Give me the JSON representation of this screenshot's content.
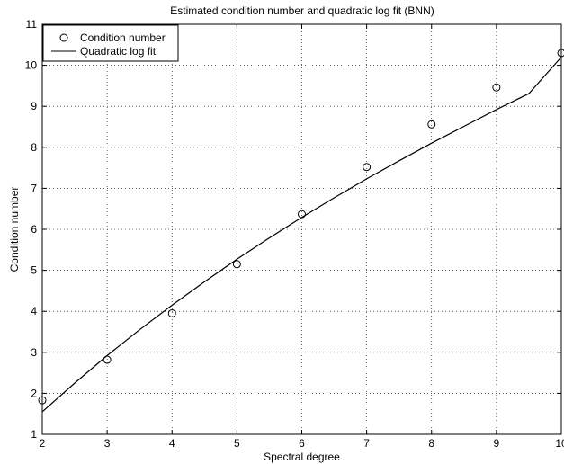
{
  "chart_data": {
    "type": "scatter",
    "title": "Estimated condition number and quadratic log fit (BNN)",
    "xlabel": "Spectral degree",
    "ylabel": "Condition number",
    "xlim": [
      2,
      10
    ],
    "ylim": [
      1,
      11
    ],
    "xticks": [
      2,
      3,
      4,
      5,
      6,
      7,
      8,
      9,
      10
    ],
    "yticks": [
      1,
      2,
      3,
      4,
      5,
      6,
      7,
      8,
      9,
      10,
      11
    ],
    "grid": true,
    "grid_style": "dotted",
    "legend_position": "top-left",
    "series": [
      {
        "name": "Condition number",
        "kind": "markers",
        "marker": "circle",
        "color": "#000000",
        "x": [
          2,
          3,
          4,
          5,
          6,
          7,
          8,
          9,
          10
        ],
        "y": [
          1.83,
          2.82,
          3.95,
          5.15,
          6.37,
          7.52,
          8.56,
          9.46,
          10.3
        ]
      },
      {
        "name": "Quadratic log fit",
        "kind": "line",
        "color": "#000000",
        "x": [
          2,
          2.5,
          3,
          3.5,
          4,
          4.5,
          5,
          5.5,
          6,
          6.5,
          7,
          7.5,
          8,
          8.5,
          9,
          9.5,
          10
        ],
        "y": [
          1.55,
          2.25,
          2.92,
          3.55,
          4.15,
          4.72,
          5.27,
          5.79,
          6.29,
          6.77,
          7.23,
          7.67,
          8.1,
          8.51,
          8.92,
          9.31,
          10.2
        ]
      }
    ]
  }
}
